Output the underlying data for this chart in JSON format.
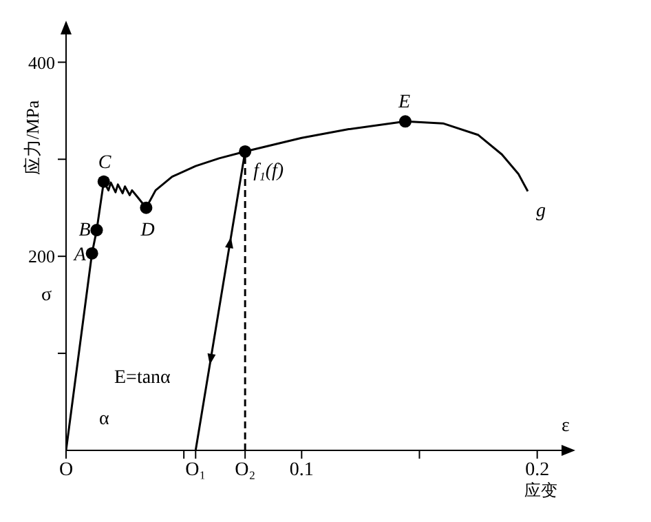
{
  "chart_data": {
    "type": "line",
    "xlabel": "应变",
    "ylabel": "应力/MPa",
    "xlim": [
      0,
      0.215
    ],
    "ylim": [
      0,
      440
    ],
    "xticks": [
      {
        "value": 0,
        "label": "O"
      },
      {
        "value": 0.05,
        "label": null
      },
      {
        "value": 0.055,
        "label": "O₁"
      },
      {
        "value": 0.076,
        "label": "O₂"
      },
      {
        "value": 0.1,
        "label": "0.1"
      },
      {
        "value": 0.15,
        "label": null
      },
      {
        "value": 0.2,
        "label": "0.2"
      }
    ],
    "yticks": [
      {
        "value": 100,
        "label": null
      },
      200,
      {
        "value": 300,
        "label": null
      },
      400
    ],
    "grid": false,
    "legend": false,
    "series": [
      {
        "color": "#000000",
        "marker": "none",
        "line_style": "solid",
        "x": [
          0,
          0.011,
          0.013,
          0.016,
          0.018,
          0.019,
          0.021,
          0.022,
          0.024,
          0.025,
          0.027,
          0.028,
          0.03,
          0.034,
          0.038,
          0.045,
          0.055,
          0.065,
          0.076,
          0.1,
          0.12,
          0.144,
          0.16,
          0.175,
          0.185,
          0.192,
          0.196
        ],
        "values": [
          0,
          203,
          227,
          277,
          268,
          276,
          266,
          274,
          265,
          272,
          263,
          268,
          262,
          250,
          268,
          282,
          293,
          301,
          308,
          322,
          331,
          339,
          337,
          325,
          305,
          285,
          267
        ]
      },
      {
        "color": "#000000",
        "marker": "none",
        "line_style": "solid",
        "x": [
          0.055,
          0.076
        ],
        "values": [
          0,
          308
        ]
      },
      {
        "color": "#000000",
        "marker": "none",
        "line_style": "dashed",
        "x": [
          0.076,
          0.076
        ],
        "values": [
          0,
          308
        ]
      },
      {
        "type": "scatter",
        "color": "#000000",
        "marker": "circle",
        "x": [
          0.011,
          0.013,
          0.016,
          0.034,
          0.076,
          0.144
        ],
        "values": [
          203,
          227,
          277,
          250,
          308,
          339
        ]
      }
    ],
    "annotations": [
      {
        "text": "A",
        "x": 0.011,
        "y": 203
      },
      {
        "text": "B",
        "x": 0.013,
        "y": 227
      },
      {
        "text": "C",
        "x": 0.016,
        "y": 277
      },
      {
        "text": "D",
        "x": 0.034,
        "y": 250
      },
      {
        "text": "f₁(f)",
        "x": 0.076,
        "y": 308
      },
      {
        "text": "E",
        "x": 0.144,
        "y": 339
      },
      {
        "text": "g",
        "x": 0.196,
        "y": 267
      },
      "σ",
      "ε",
      "E=tanα",
      "α"
    ]
  }
}
